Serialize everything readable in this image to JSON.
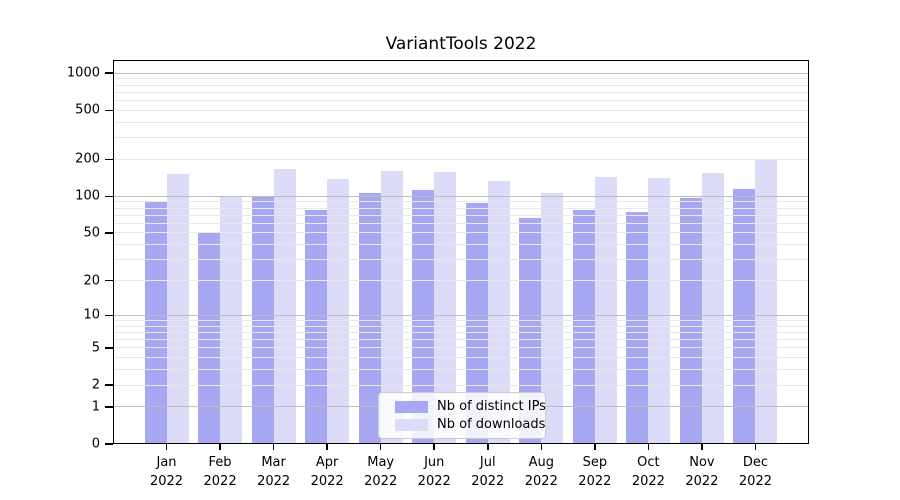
{
  "chart_data": {
    "type": "bar",
    "title": "VariantTools 2022",
    "categories": [
      "Jan",
      "Feb",
      "Mar",
      "Apr",
      "May",
      "Jun",
      "Jul",
      "Aug",
      "Sep",
      "Oct",
      "Nov",
      "Dec"
    ],
    "year_line": "2022",
    "series": [
      {
        "name": "Nb of distinct IPs",
        "color": "#a8a8f2",
        "values": [
          90,
          50,
          101,
          77,
          106,
          113,
          88,
          67,
          78,
          74,
          97,
          114
        ]
      },
      {
        "name": "Nb of downloads",
        "color": "#dcdcf8",
        "values": [
          152,
          98,
          166,
          139,
          161,
          159,
          134,
          106,
          144,
          142,
          154,
          200
        ]
      }
    ],
    "yscale": "log10(1+value)",
    "ylim": [
      0,
      1280
    ],
    "yticks": [
      0,
      1,
      2,
      5,
      10,
      20,
      50,
      100,
      200,
      500,
      1000
    ],
    "grid_major": [
      1,
      10,
      100,
      1000
    ],
    "grid_minor": [
      2,
      3,
      4,
      5,
      6,
      7,
      8,
      9,
      20,
      30,
      40,
      50,
      60,
      70,
      80,
      90,
      200,
      300,
      400,
      500,
      600,
      700,
      800,
      900
    ],
    "grid_on": true,
    "legend_position": "bottom-center"
  },
  "colors": {
    "major_grid": "#bdbdbd",
    "minor_grid": "#e8e8e8",
    "axis": "#000000",
    "legend_border": "#cccccc"
  }
}
